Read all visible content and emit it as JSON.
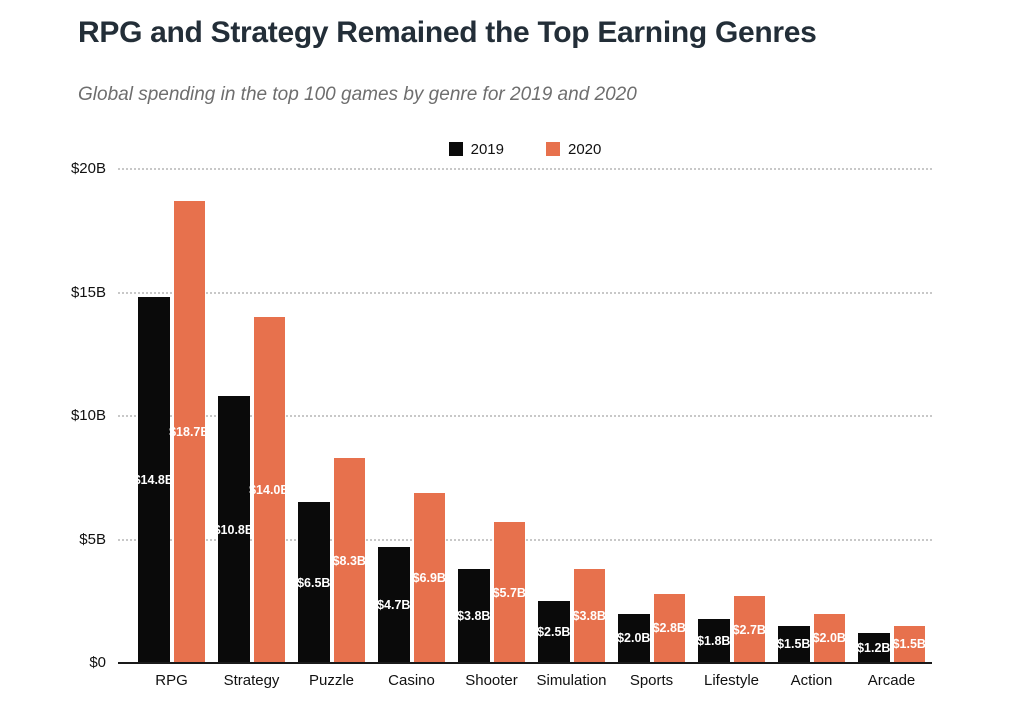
{
  "header": {
    "title": "RPG and Strategy Remained the Top Earning Genres",
    "subtitle": "Global spending in the top 100 games by genre for 2019 and 2020"
  },
  "legend": {
    "items": [
      {
        "label": "2019",
        "color": "#0a0a0a"
      },
      {
        "label": "2020",
        "color": "#e7714d"
      }
    ]
  },
  "chart_data": {
    "type": "bar",
    "title": "RPG and Strategy Remained the Top Earning Genres",
    "subtitle": "Global spending in the top 100 games by genre for 2019 and 2020",
    "categories": [
      "RPG",
      "Strategy",
      "Puzzle",
      "Casino",
      "Shooter",
      "Simulation",
      "Sports",
      "Lifestyle",
      "Action",
      "Arcade"
    ],
    "series": [
      {
        "name": "2019",
        "color": "#0a0a0a",
        "values": [
          14.8,
          10.8,
          6.5,
          4.7,
          3.8,
          2.5,
          2.0,
          1.8,
          1.5,
          1.2
        ],
        "labels": [
          "$14.8B",
          "$10.8B",
          "$6.5B",
          "$4.7B",
          "$3.8B",
          "$2.5B",
          "$2.0B",
          "$1.8B",
          "$1.5B",
          "$1.2B"
        ]
      },
      {
        "name": "2020",
        "color": "#e7714d",
        "values": [
          18.7,
          14.0,
          8.3,
          6.9,
          5.7,
          3.8,
          2.8,
          2.7,
          2.0,
          1.5
        ],
        "labels": [
          "$18.7B",
          "$14.0B",
          "$8.3B",
          "$6.9B",
          "$5.7B",
          "$3.8B",
          "$2.8B",
          "$2.7B",
          "$2.0B",
          "$1.5B"
        ]
      }
    ],
    "yticks": [
      {
        "label": "$0",
        "value": 0
      },
      {
        "label": "$5B",
        "value": 5
      },
      {
        "label": "$10B",
        "value": 10
      },
      {
        "label": "$15B",
        "value": 15
      },
      {
        "label": "$20B",
        "value": 20
      }
    ],
    "ylim": [
      0,
      20
    ],
    "xlabel": "",
    "ylabel": "",
    "grid": "horizontal-dotted",
    "legend_position": "top-center",
    "value_labels": "inside-center-white"
  },
  "colors": {
    "background": "#ffffff",
    "title": "#232e38",
    "subtitle": "#6e6e6e",
    "axis_text": "#111111",
    "gridline": "#c8c8c8",
    "axis_line": "#1a1a1a",
    "bar_2019": "#0a0a0a",
    "bar_2020": "#e7714d",
    "bar_label": "#ffffff"
  }
}
